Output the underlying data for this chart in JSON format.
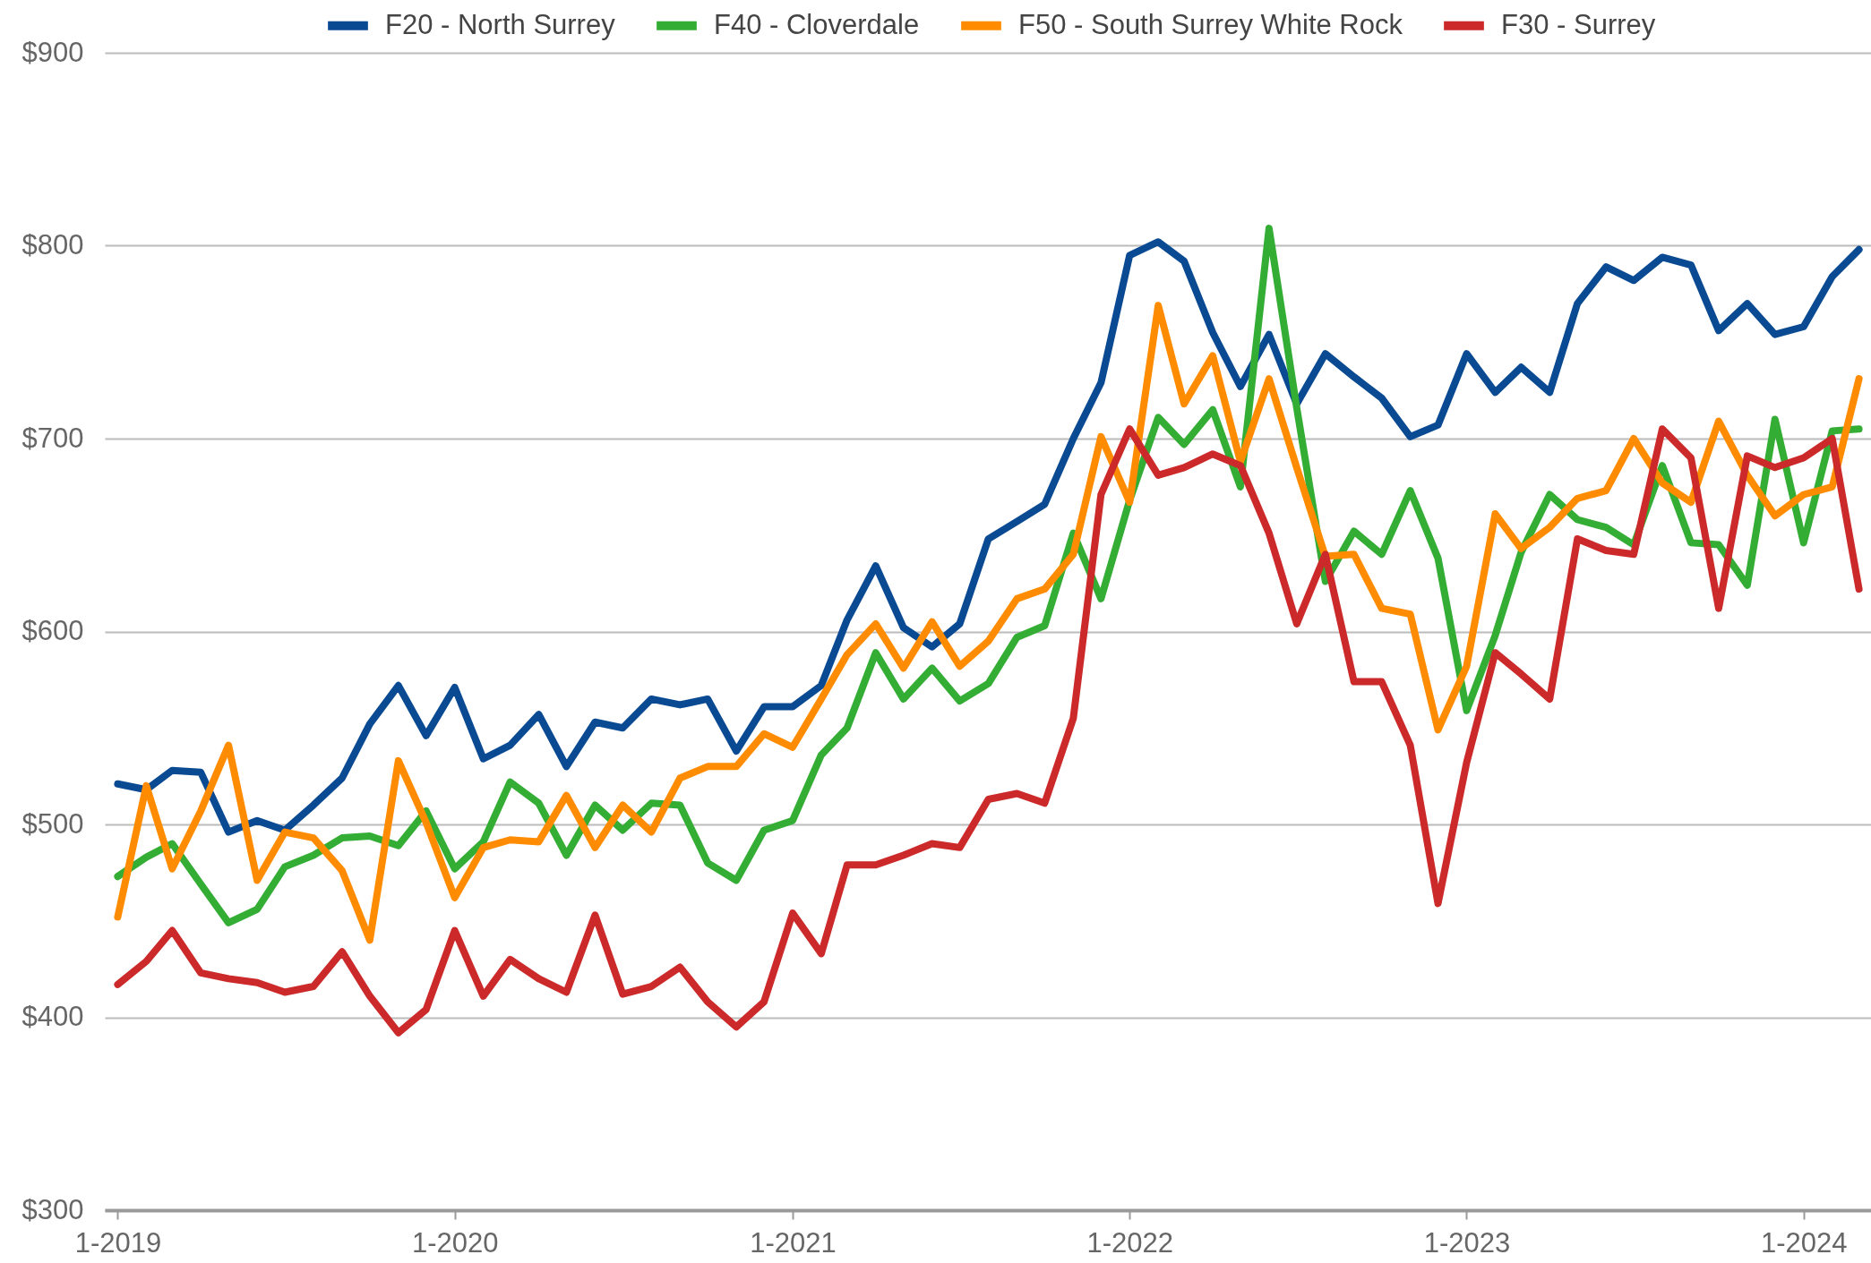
{
  "chart_data": {
    "type": "line",
    "x": [
      "2019-01",
      "2019-02",
      "2019-03",
      "2019-04",
      "2019-05",
      "2019-06",
      "2019-07",
      "2019-08",
      "2019-09",
      "2019-10",
      "2019-11",
      "2019-12",
      "2020-01",
      "2020-02",
      "2020-03",
      "2020-04",
      "2020-05",
      "2020-06",
      "2020-07",
      "2020-08",
      "2020-09",
      "2020-10",
      "2020-11",
      "2020-12",
      "2021-01",
      "2021-02",
      "2021-03",
      "2021-04",
      "2021-05",
      "2021-06",
      "2021-07",
      "2021-08",
      "2021-09",
      "2021-10",
      "2021-11",
      "2021-12",
      "2022-01",
      "2022-02",
      "2022-03",
      "2022-04",
      "2022-05",
      "2022-06",
      "2022-07",
      "2022-08",
      "2022-09",
      "2022-10",
      "2022-11",
      "2022-12",
      "2023-01",
      "2023-02",
      "2023-03",
      "2023-04",
      "2023-05",
      "2023-06",
      "2023-07",
      "2023-08",
      "2023-09",
      "2023-10",
      "2023-11",
      "2023-12",
      "2024-01",
      "2024-02",
      "2024-03"
    ],
    "series": [
      {
        "name": "F20 - North Surrey",
        "color": "#0a4a92",
        "values": [
          521,
          518,
          528,
          527,
          496,
          502,
          497,
          510,
          524,
          552,
          572,
          546,
          571,
          534,
          541,
          557,
          530,
          553,
          550,
          565,
          562,
          565,
          538,
          561,
          561,
          572,
          606,
          634,
          602,
          592,
          604,
          648,
          657,
          666,
          700,
          729,
          795,
          802,
          792,
          755,
          727,
          754,
          718,
          744,
          732,
          721,
          701,
          707,
          744,
          724,
          737,
          724,
          770,
          789,
          782,
          794,
          790,
          756,
          770,
          754,
          758,
          784,
          798
        ]
      },
      {
        "name": "F40 - Cloverdale",
        "color": "#34ad34",
        "values": [
          473,
          483,
          490,
          469,
          449,
          456,
          478,
          484,
          493,
          494,
          489,
          507,
          477,
          491,
          522,
          511,
          484,
          510,
          497,
          511,
          510,
          480,
          471,
          497,
          502,
          536,
          550,
          589,
          565,
          581,
          564,
          573,
          597,
          603,
          651,
          617,
          668,
          711,
          697,
          715,
          675,
          809,
          716,
          626,
          652,
          640,
          673,
          638,
          559,
          598,
          641,
          671,
          658,
          654,
          645,
          686,
          646,
          645,
          624,
          710,
          646,
          704,
          705
        ]
      },
      {
        "name": "F50 - South Surrey White Rock",
        "color": "#ff8c00",
        "values": [
          452,
          520,
          477,
          507,
          541,
          471,
          496,
          493,
          476,
          440,
          533,
          501,
          462,
          488,
          492,
          491,
          515,
          488,
          510,
          496,
          524,
          530,
          530,
          547,
          540,
          565,
          588,
          604,
          581,
          605,
          582,
          595,
          617,
          622,
          640,
          701,
          667,
          769,
          718,
          743,
          688,
          731,
          685,
          639,
          640,
          612,
          609,
          549,
          582,
          661,
          643,
          654,
          669,
          673,
          700,
          677,
          667,
          709,
          681,
          660,
          671,
          675,
          731
        ]
      },
      {
        "name": "F30 - Surrey",
        "color": "#cc2a2a",
        "values": [
          417,
          429,
          445,
          423,
          420,
          418,
          413,
          416,
          434,
          411,
          392,
          404,
          445,
          411,
          430,
          420,
          413,
          453,
          412,
          416,
          426,
          408,
          395,
          408,
          454,
          433,
          479,
          479,
          484,
          490,
          488,
          513,
          516,
          511,
          555,
          671,
          705,
          681,
          685,
          692,
          686,
          651,
          604,
          640,
          574,
          574,
          541,
          459,
          532,
          589,
          578,
          565,
          648,
          642,
          640,
          705,
          690,
          612,
          691,
          685,
          690,
          700,
          622
        ]
      }
    ],
    "xlim": [
      "2018-12-18",
      "2024-03-14"
    ],
    "xticks": [
      {
        "value": "2019-01",
        "label": "1-2019"
      },
      {
        "value": "2020-01",
        "label": "1-2020"
      },
      {
        "value": "2021-01",
        "label": "1-2021"
      },
      {
        "value": "2022-01",
        "label": "1-2022"
      },
      {
        "value": "2023-01",
        "label": "1-2023"
      },
      {
        "value": "2024-01",
        "label": "1-2024"
      }
    ],
    "ylim": [
      300,
      900
    ],
    "yticks": [
      {
        "value": 300,
        "label": "$300"
      },
      {
        "value": 400,
        "label": "$400"
      },
      {
        "value": 500,
        "label": "$500"
      },
      {
        "value": 600,
        "label": "$600"
      },
      {
        "value": 700,
        "label": "$700"
      },
      {
        "value": 800,
        "label": "$800"
      },
      {
        "value": 900,
        "label": "$900"
      }
    ],
    "grid": "y",
    "legend": "top",
    "line_style": "solid"
  }
}
